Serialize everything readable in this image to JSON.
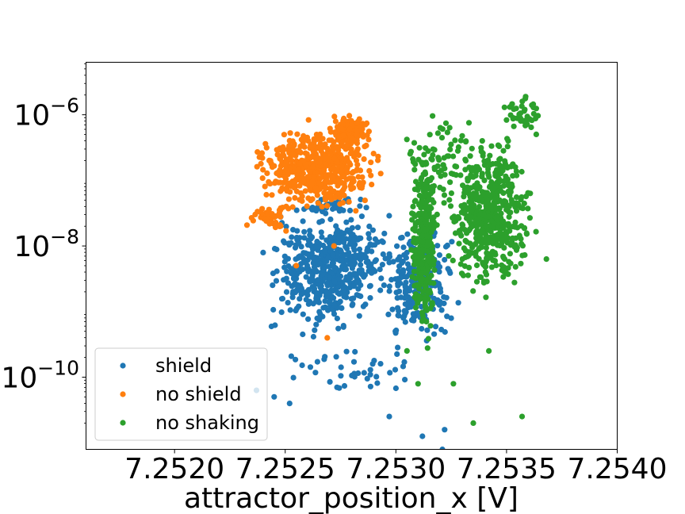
{
  "chart_data": {
    "type": "scatter",
    "title": "",
    "xlabel": "attractor_position_x [V]",
    "ylabel": "",
    "xlim": [
      7.2516,
      7.254
    ],
    "ylim_log10": [
      -11.1,
      -5.2
    ],
    "yscale": "log",
    "grid": false,
    "legend_position": "lower-left",
    "x_ticks": [
      {
        "value": 7.252,
        "label": "7.2520"
      },
      {
        "value": 7.2525,
        "label": "7.2525"
      },
      {
        "value": 7.253,
        "label": "7.2530"
      },
      {
        "value": 7.2535,
        "label": "7.2535"
      },
      {
        "value": 7.254,
        "label": "7.2540"
      }
    ],
    "y_ticks": [
      {
        "exponent": -6,
        "base": "10",
        "exp_label": "−6"
      },
      {
        "exponent": -8,
        "base": "10",
        "exp_label": "−8"
      },
      {
        "exponent": -10,
        "base": "10",
        "exp_label": "−10"
      }
    ],
    "series": [
      {
        "name": "shield",
        "color": "#1f77b4",
        "clusters": [
          {
            "x_range": [
              7.25235,
              7.25305
            ],
            "log10y_range": [
              -9.6,
              -7.1
            ],
            "count": 520
          },
          {
            "x_range": [
              7.2524,
              7.25325
            ],
            "log10y_range": [
              -10.4,
              -9.3
            ],
            "count": 40
          },
          {
            "x_range": [
              7.2529,
              7.2533
            ],
            "log10y_range": [
              -9.8,
              -7.3
            ],
            "count": 220
          },
          {
            "x_range": [
              7.2525,
              7.2529
            ],
            "log10y_range": [
              -7.6,
              -7.2
            ],
            "count": 40
          }
        ],
        "outliers": [
          {
            "x": 7.25237,
            "log10y": -10.2
          },
          {
            "x": 7.25245,
            "log10y": -10.3
          },
          {
            "x": 7.25297,
            "log10y": -10.6
          },
          {
            "x": 7.25312,
            "log10y": -10.9
          },
          {
            "x": 7.25322,
            "log10y": -10.8
          },
          {
            "x": 7.25321,
            "log10y": -11.1
          },
          {
            "x": 7.25325,
            "log10y": -9.1
          },
          {
            "x": 7.25252,
            "log10y": -10.4
          }
        ]
      },
      {
        "name": "no shield",
        "color": "#ff7f0e",
        "clusters": [
          {
            "x_range": [
              7.2523,
              7.25297
            ],
            "log10y_range": [
              -7.7,
              -5.95
            ],
            "count": 520
          },
          {
            "x_range": [
              7.25267,
              7.2529
            ],
            "log10y_range": [
              -6.6,
              -5.9
            ],
            "count": 140
          },
          {
            "x_range": [
              7.2523,
              7.25255
            ],
            "log10y_range": [
              -7.9,
              -7.2
            ],
            "count": 40
          }
        ],
        "outliers": [
          {
            "x": 7.25269,
            "log10y": -9.4
          },
          {
            "x": 7.25255,
            "log10y": -8.3
          },
          {
            "x": 7.25272,
            "log10y": -8.0
          }
        ]
      },
      {
        "name": "no shaking",
        "color": "#2ca02c",
        "clusters": [
          {
            "x_range": [
              7.25305,
              7.2532
            ],
            "log10y_range": [
              -9.8,
              -6.0
            ],
            "count": 320
          },
          {
            "x_range": [
              7.2532,
              7.25365
            ],
            "log10y_range": [
              -9.1,
              -5.9
            ],
            "count": 520
          },
          {
            "x_range": [
              7.25345,
              7.25368
            ],
            "log10y_range": [
              -6.4,
              -5.6
            ],
            "count": 40
          },
          {
            "x_range": [
              7.253,
              7.2534
            ],
            "log10y_range": [
              -7.8,
              -5.7
            ],
            "count": 60
          }
        ],
        "outliers": [
          {
            "x": 7.25305,
            "log10y": -9.6
          },
          {
            "x": 7.2531,
            "log10y": -10.1
          },
          {
            "x": 7.25326,
            "log10y": -10.1
          },
          {
            "x": 7.25335,
            "log10y": -10.7
          },
          {
            "x": 7.25357,
            "log10y": -10.6
          },
          {
            "x": 7.25342,
            "log10y": -9.6
          },
          {
            "x": 7.25368,
            "log10y": -8.2
          }
        ]
      }
    ]
  }
}
